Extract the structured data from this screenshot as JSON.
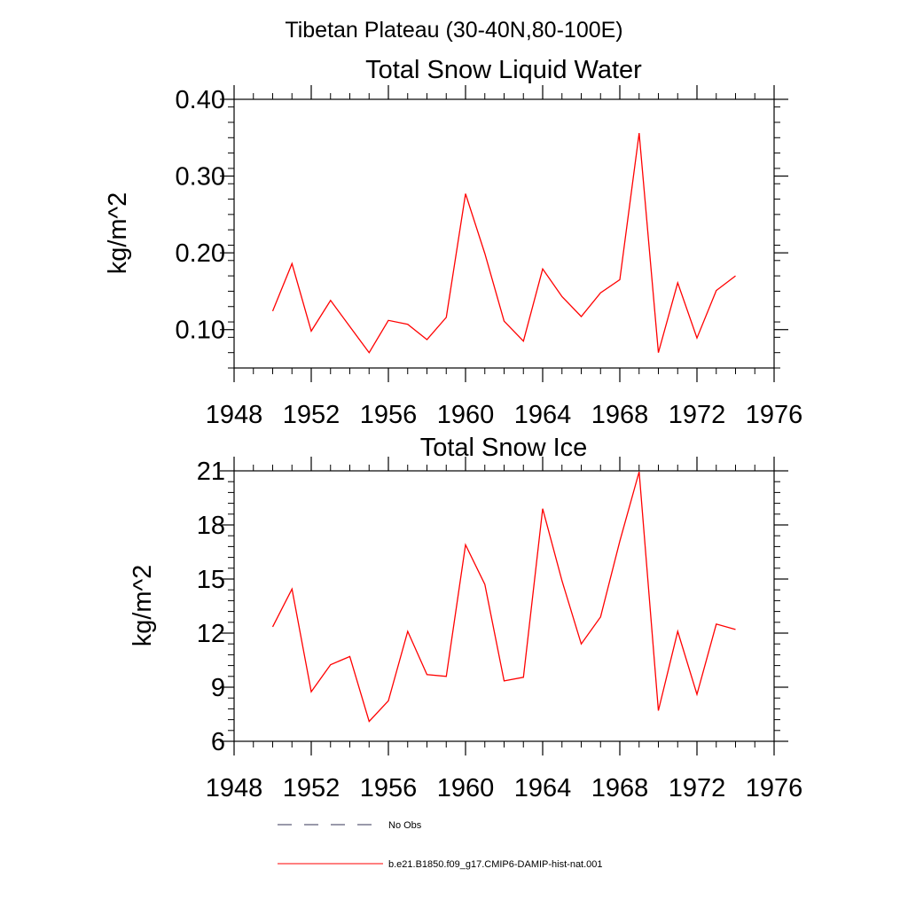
{
  "page_title": "Tibetan Plateau (30-40N,80-100E)",
  "colors": {
    "axis": "#000000",
    "series": "#ff0000",
    "legend_dash": "#333355"
  },
  "legend": [
    {
      "label": "No Obs",
      "style": "dashed"
    },
    {
      "label": "b.e21.B1850.f09_g17.CMIP6-DAMIP-hist-nat.001",
      "style": "solid"
    }
  ],
  "chart_data": [
    {
      "type": "line",
      "title": "Total Snow Liquid Water",
      "xlabel": "",
      "ylabel": "kg/m^2",
      "xlim": [
        1948,
        1976
      ],
      "ylim": [
        0.05,
        0.4
      ],
      "xticks": [
        1948,
        1952,
        1956,
        1960,
        1964,
        1968,
        1972,
        1976
      ],
      "yticks": [
        0.1,
        0.2,
        0.3,
        0.4
      ],
      "ytick_labels": [
        "0.10",
        "0.20",
        "0.30",
        "0.40"
      ],
      "grid": false,
      "series": [
        {
          "name": "b.e21.B1850.f09_g17.CMIP6-DAMIP-hist-nat.001",
          "x": [
            1950,
            1951,
            1952,
            1953,
            1954,
            1955,
            1956,
            1957,
            1958,
            1959,
            1960,
            1961,
            1962,
            1963,
            1964,
            1965,
            1966,
            1967,
            1968,
            1969,
            1970,
            1971,
            1972,
            1973,
            1974
          ],
          "y": [
            0.124,
            0.186,
            0.098,
            0.138,
            0.104,
            0.07,
            0.112,
            0.107,
            0.087,
            0.116,
            0.277,
            0.199,
            0.111,
            0.085,
            0.179,
            0.143,
            0.117,
            0.148,
            0.165,
            0.356,
            0.07,
            0.161,
            0.089,
            0.151,
            0.17
          ]
        }
      ]
    },
    {
      "type": "line",
      "title": "Total Snow Ice",
      "xlabel": "",
      "ylabel": "kg/m^2",
      "xlim": [
        1948,
        1976
      ],
      "ylim": [
        6,
        21
      ],
      "xticks": [
        1948,
        1952,
        1956,
        1960,
        1964,
        1968,
        1972,
        1976
      ],
      "yticks": [
        6,
        9,
        12,
        15,
        18,
        21
      ],
      "ytick_labels": [
        "6",
        "9",
        "12",
        "15",
        "18",
        "21"
      ],
      "grid": false,
      "series": [
        {
          "name": "b.e21.B1850.f09_g17.CMIP6-DAMIP-hist-nat.001",
          "x": [
            1950,
            1951,
            1952,
            1953,
            1954,
            1955,
            1956,
            1957,
            1958,
            1959,
            1960,
            1961,
            1962,
            1963,
            1964,
            1965,
            1966,
            1967,
            1968,
            1969,
            1970,
            1971,
            1972,
            1973,
            1974
          ],
          "y": [
            12.35,
            14.45,
            8.75,
            10.25,
            10.7,
            7.1,
            8.25,
            12.1,
            9.7,
            9.6,
            16.9,
            14.7,
            9.35,
            9.55,
            18.9,
            14.9,
            11.4,
            12.9,
            17.1,
            20.95,
            7.7,
            12.1,
            8.6,
            12.5,
            12.2
          ]
        }
      ]
    }
  ]
}
